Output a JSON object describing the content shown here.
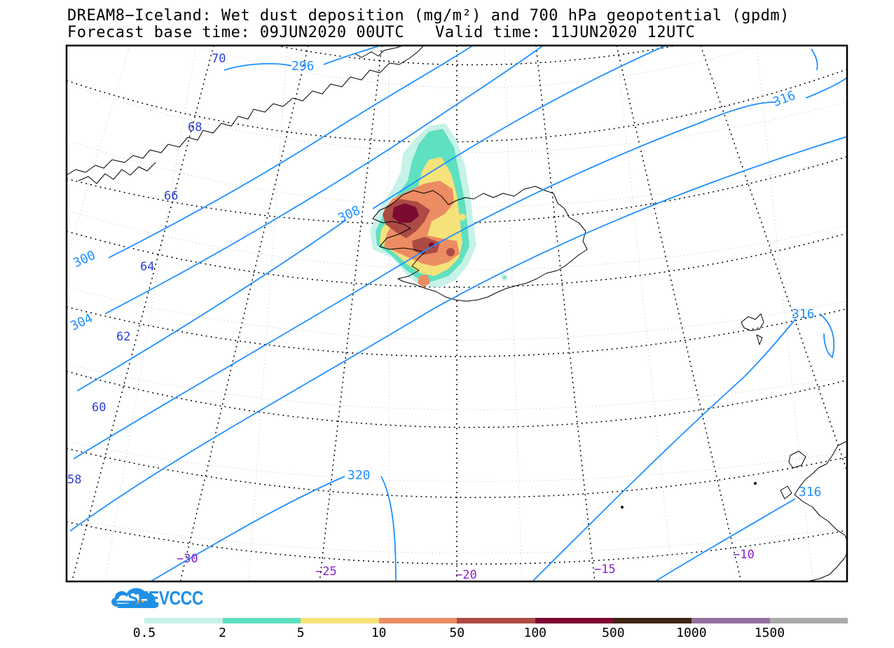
{
  "title": {
    "line1": "DREAM8−Iceland: Wet dust deposition (mg/m²) and 700 hPa geopotential (gpdm)",
    "base_time": "Forecast base time: 09JUN2020 00UTC",
    "valid_time": "Valid time: 11JUN2020 12UTC"
  },
  "latitude_labels": [
    "70",
    "68",
    "66",
    "64",
    "62",
    "60",
    "58"
  ],
  "longitude_labels": [
    "−30",
    "−25",
    "−20",
    "−15",
    "−10"
  ],
  "contour_labels": [
    "296",
    "300",
    "304",
    "308",
    "316",
    "316",
    "320",
    "316"
  ],
  "colors": {
    "contour": "#1e90ff",
    "lat_label": "#2b3fd8",
    "lon_label": "#8a1fd0",
    "brand": "#1e90e6"
  },
  "logo": {
    "text": "SEEVCCC"
  },
  "colorbar": {
    "colors": [
      "#c6f2e8",
      "#5fe0c0",
      "#f6e27a",
      "#ec8c62",
      "#ac4a44",
      "#7c0a30",
      "#3e2414",
      "#9470a0",
      "#aaaaaa"
    ],
    "labels": [
      "0.5",
      "2",
      "5",
      "10",
      "50",
      "100",
      "500",
      "1000",
      "1500"
    ]
  }
}
